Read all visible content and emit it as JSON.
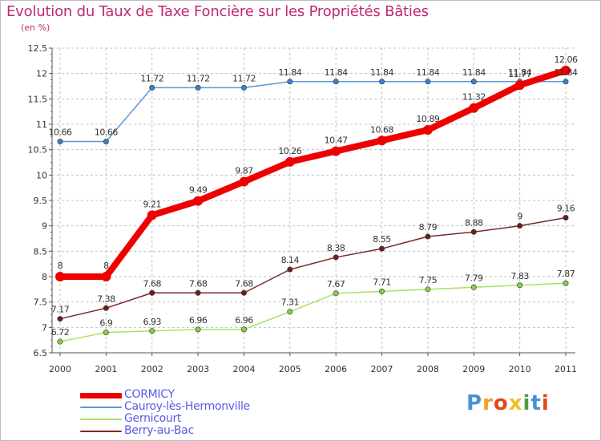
{
  "title": "Evolution du Taux de Taxe Foncière sur les Propriétés Bâties",
  "subtitle": "(en %)",
  "colors": {
    "title": "#c0296f",
    "axis": "#555555",
    "grid": "#c0c0c0"
  },
  "chart_data": {
    "type": "line",
    "title": "Evolution du Taux de Taxe Foncière sur les Propriétés Bâties",
    "ylabel": "(en %)",
    "xlabel": "",
    "ylim": [
      6.5,
      12.5
    ],
    "yticks": [
      "6.5",
      "7",
      "7.5",
      "8",
      "8.5",
      "9",
      "9.5",
      "10",
      "10.5",
      "11",
      "11.5",
      "12",
      "12.5"
    ],
    "categories": [
      "2000",
      "2001",
      "2002",
      "2003",
      "2004",
      "2005",
      "2006",
      "2007",
      "2008",
      "2009",
      "2010",
      "2011"
    ],
    "grid": true,
    "series": [
      {
        "name": "Cauroy-lès-Hermonville",
        "color": "#5b9bd5",
        "width": 1.5,
        "marker": "#3c82c8",
        "values": [
          10.66,
          10.66,
          11.72,
          11.72,
          11.72,
          11.84,
          11.84,
          11.84,
          11.84,
          11.84,
          11.84,
          11.84
        ],
        "labels": [
          "10.66",
          "10.66",
          "11.72",
          "11.72",
          "11.72",
          "11.84",
          "11.84",
          "11.84",
          "11.84",
          "11.84",
          "11.84",
          "11.84"
        ]
      },
      {
        "name": "Gernicourt",
        "color": "#a8e06a",
        "width": 1.5,
        "marker": "#82d048",
        "values": [
          6.72,
          6.9,
          6.93,
          6.96,
          6.96,
          7.31,
          7.67,
          7.71,
          7.75,
          7.79,
          7.83,
          7.87
        ],
        "labels": [
          "6.72",
          "6.9",
          "6.93",
          "6.96",
          "6.96",
          "7.31",
          "7.67",
          "7.71",
          "7.75",
          "7.79",
          "7.83",
          "7.87"
        ]
      },
      {
        "name": "Berry-au-Bac",
        "color": "#7a2a2a",
        "width": 1.5,
        "marker": "#6b1f1f",
        "values": [
          7.17,
          7.38,
          7.68,
          7.68,
          7.68,
          8.14,
          8.38,
          8.55,
          8.79,
          8.88,
          9.0,
          9.16
        ],
        "labels": [
          "7.17",
          "7.38",
          "7.68",
          "7.68",
          "7.68",
          "8.14",
          "8.38",
          "8.55",
          "8.79",
          "8.88",
          "9",
          "9.16"
        ]
      },
      {
        "name": "CORMICY",
        "color": "#ee0000",
        "width": 8,
        "marker": "#ee0000",
        "values": [
          8.0,
          8.0,
          9.21,
          9.49,
          9.87,
          10.26,
          10.47,
          10.68,
          10.89,
          11.32,
          11.77,
          12.06
        ],
        "labels": [
          "8",
          "8",
          "9.21",
          "9.49",
          "9.87",
          "10.26",
          "10.47",
          "10.68",
          "10.89",
          "11.32",
          "11.77",
          "12.06"
        ]
      }
    ],
    "legend": [
      {
        "name": "CORMICY",
        "color": "#ee0000",
        "thickness": 7
      },
      {
        "name": "Cauroy-lès-Hermonville",
        "color": "#5b9bd5",
        "thickness": 2
      },
      {
        "name": "Gernicourt",
        "color": "#a8e06a",
        "thickness": 2
      },
      {
        "name": "Berry-au-Bac",
        "color": "#7a2a2a",
        "thickness": 2
      }
    ]
  },
  "logo": {
    "text": "Proxiti",
    "letters": [
      {
        "ch": "P",
        "color": "#4a90d9"
      },
      {
        "ch": "r",
        "color": "#f0a020"
      },
      {
        "ch": "o",
        "color": "#e04a1a"
      },
      {
        "ch": "x",
        "color": "#f0c020"
      },
      {
        "ch": "i",
        "color": "#4aa040"
      },
      {
        "ch": "t",
        "color": "#4a90d9"
      },
      {
        "ch": "i",
        "color": "#e04a1a"
      }
    ]
  }
}
